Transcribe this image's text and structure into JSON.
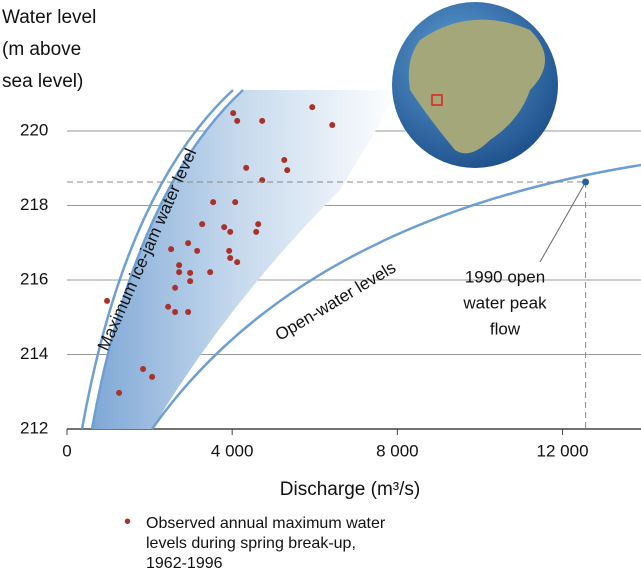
{
  "chart_data": {
    "type": "scatter",
    "y_label_lines": [
      "Water level",
      "(m above",
      "sea level)"
    ],
    "x_label": "Discharge (m³/s)",
    "xlim": [
      0,
      13900
    ],
    "ylim": [
      212,
      221.1
    ],
    "xticks": [
      0,
      {
        "value": 4000,
        "label": "4 000"
      },
      {
        "value": 8000,
        "label": "8 000"
      },
      {
        "value": 12000,
        "label": "12 000"
      }
    ],
    "yticks": [
      212,
      214,
      216,
      218,
      220
    ],
    "grid": true,
    "series": [
      {
        "name": "Observed annual maximum water levels during spring break-up, 1962-1996",
        "color": "#a8322a",
        "x": [
          4024,
          4121,
          4727,
          5939,
          6424,
          5261,
          5333,
          4339,
          4727,
          3539,
          4073,
          3273,
          3806,
          3952,
          4630,
          4582,
          2521,
          2933,
          3152,
          3927,
          3952,
          4121,
          3467,
          2715,
          2715,
          2982,
          2982,
          2618,
          2448,
          2618,
          2933,
          970,
          1842,
          2061,
          1261
        ],
        "values": [
          220.48,
          220.27,
          220.27,
          220.64,
          220.16,
          219.22,
          218.95,
          219.01,
          218.68,
          218.09,
          218.09,
          217.5,
          217.42,
          217.29,
          217.5,
          217.29,
          216.83,
          216.99,
          216.78,
          216.78,
          216.59,
          216.48,
          216.21,
          216.4,
          216.21,
          216.19,
          215.97,
          215.79,
          215.28,
          215.14,
          215.14,
          215.44,
          213.61,
          213.4,
          212.97
        ]
      }
    ],
    "curve_labels": [
      "Maximum ice-jam water level",
      "Open-water levels"
    ],
    "annotation": {
      "label_lines": [
        "1990 open",
        "water peak",
        "flow"
      ],
      "x": 12558,
      "y": 218.63,
      "color": "#2a5f9e"
    }
  }
}
